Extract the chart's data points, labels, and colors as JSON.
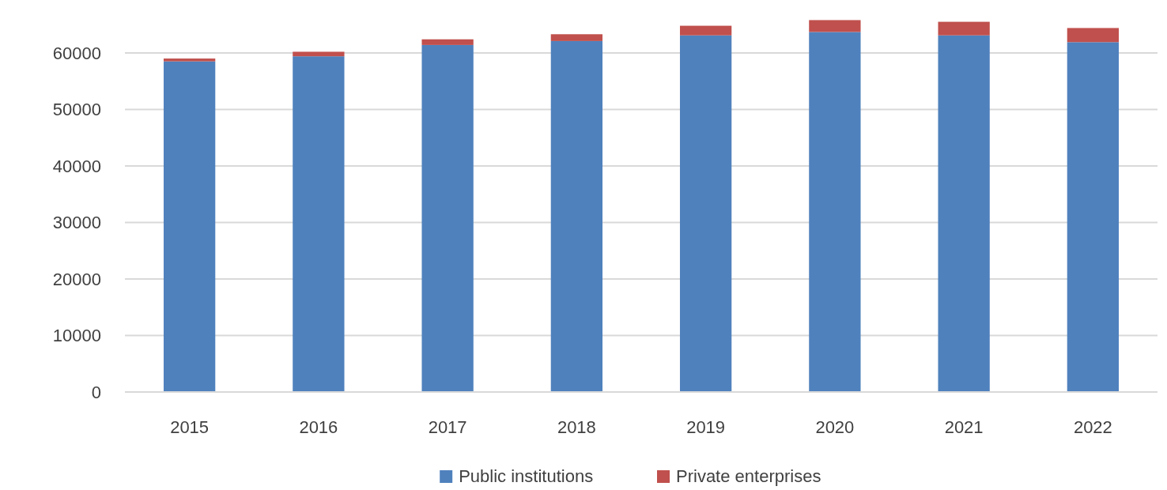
{
  "chart_data": {
    "type": "bar",
    "stacked": true,
    "categories": [
      "2015",
      "2016",
      "2017",
      "2018",
      "2019",
      "2020",
      "2021",
      "2022"
    ],
    "series": [
      {
        "name": "Public institutions",
        "color": "#4f81bd",
        "values": [
          58500,
          59400,
          61400,
          62100,
          63100,
          63700,
          63100,
          61900
        ]
      },
      {
        "name": "Private enterprises",
        "color": "#c0504d",
        "values": [
          500,
          800,
          1000,
          1200,
          1700,
          2100,
          2400,
          2500
        ]
      }
    ],
    "ylim": [
      0,
      66000
    ],
    "yticks": [
      0,
      10000,
      20000,
      30000,
      40000,
      50000,
      60000
    ],
    "grid": "y",
    "legend": "bottom"
  }
}
